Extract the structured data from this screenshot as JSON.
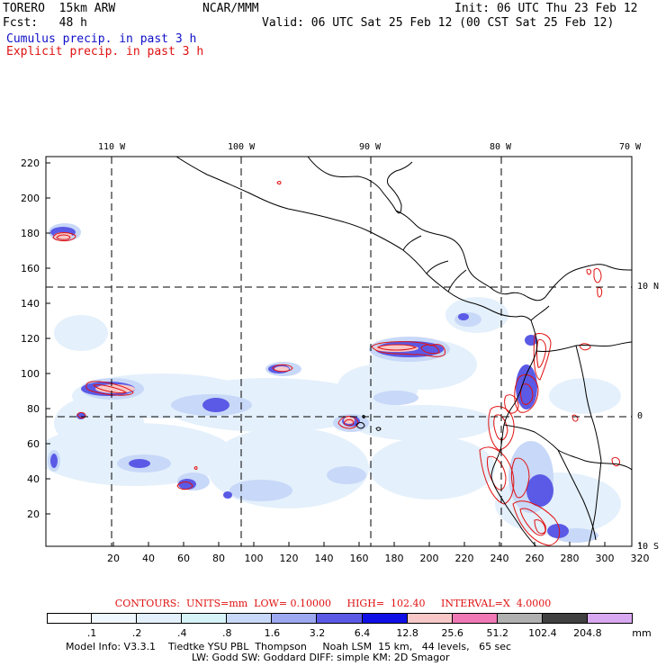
{
  "header": {
    "model": "TORERO  15km ARW",
    "org": "NCAR/MMM",
    "init": "Init: 06 UTC Thu 23 Feb 12",
    "forecast": "Fcst:   48 h",
    "valid": "Valid: 06 UTC Sat 25 Feb 12 (00 CST Sat 25 Feb 12)",
    "field1": "Cumulus precip. in past 3 h",
    "field2": "Explicit precip. in past 3 h"
  },
  "map": {
    "lon_labels": [
      "110 W",
      "100 W",
      "90 W",
      "80 W",
      "70 W"
    ],
    "lat_labels": [
      "10 N",
      "0",
      "10 S"
    ],
    "y_ticks": [
      "220",
      "200",
      "180",
      "160",
      "140",
      "120",
      "100",
      "80",
      "60",
      "40",
      "20"
    ],
    "x_ticks": [
      "20",
      "40",
      "60",
      "80",
      "100",
      "120",
      "140",
      "160",
      "180",
      "200",
      "220",
      "240",
      "260",
      "280",
      "300",
      "320"
    ],
    "colors": {
      "explicit_contour": "#e01010",
      "coast": "#000000",
      "gridline": "#000000"
    }
  },
  "contours_info": "CONTOURS:  UNITS=mm  LOW= 0.10000     HIGH=  102.40     INTERVAL=X  4.0000",
  "color_scale": {
    "labels": [
      ".1",
      ".2",
      ".4",
      ".8",
      "1.6",
      "3.2",
      "6.4",
      "12.8",
      "25.6",
      "51.2",
      "102.4",
      "204.8"
    ],
    "unit": "mm",
    "colors": [
      "#ffffff",
      "#f0f8ff",
      "#e4f0fb",
      "#d6f4f8",
      "#c8d8f8",
      "#9ca8f0",
      "#5a5ae6",
      "#1010e6",
      "#f8c8c8",
      "#f078b4",
      "#b0b0b0",
      "#404040",
      "#d8a8f0"
    ]
  },
  "footer": {
    "line1": "Model Info: V3.3.1    Tiedtke YSU PBL  Thompson     Noah LSM  15 km,   44 levels,   65 sec",
    "line2": "LW: Godd SW: Goddard DIFF: simple KM: 2D Smagor"
  }
}
